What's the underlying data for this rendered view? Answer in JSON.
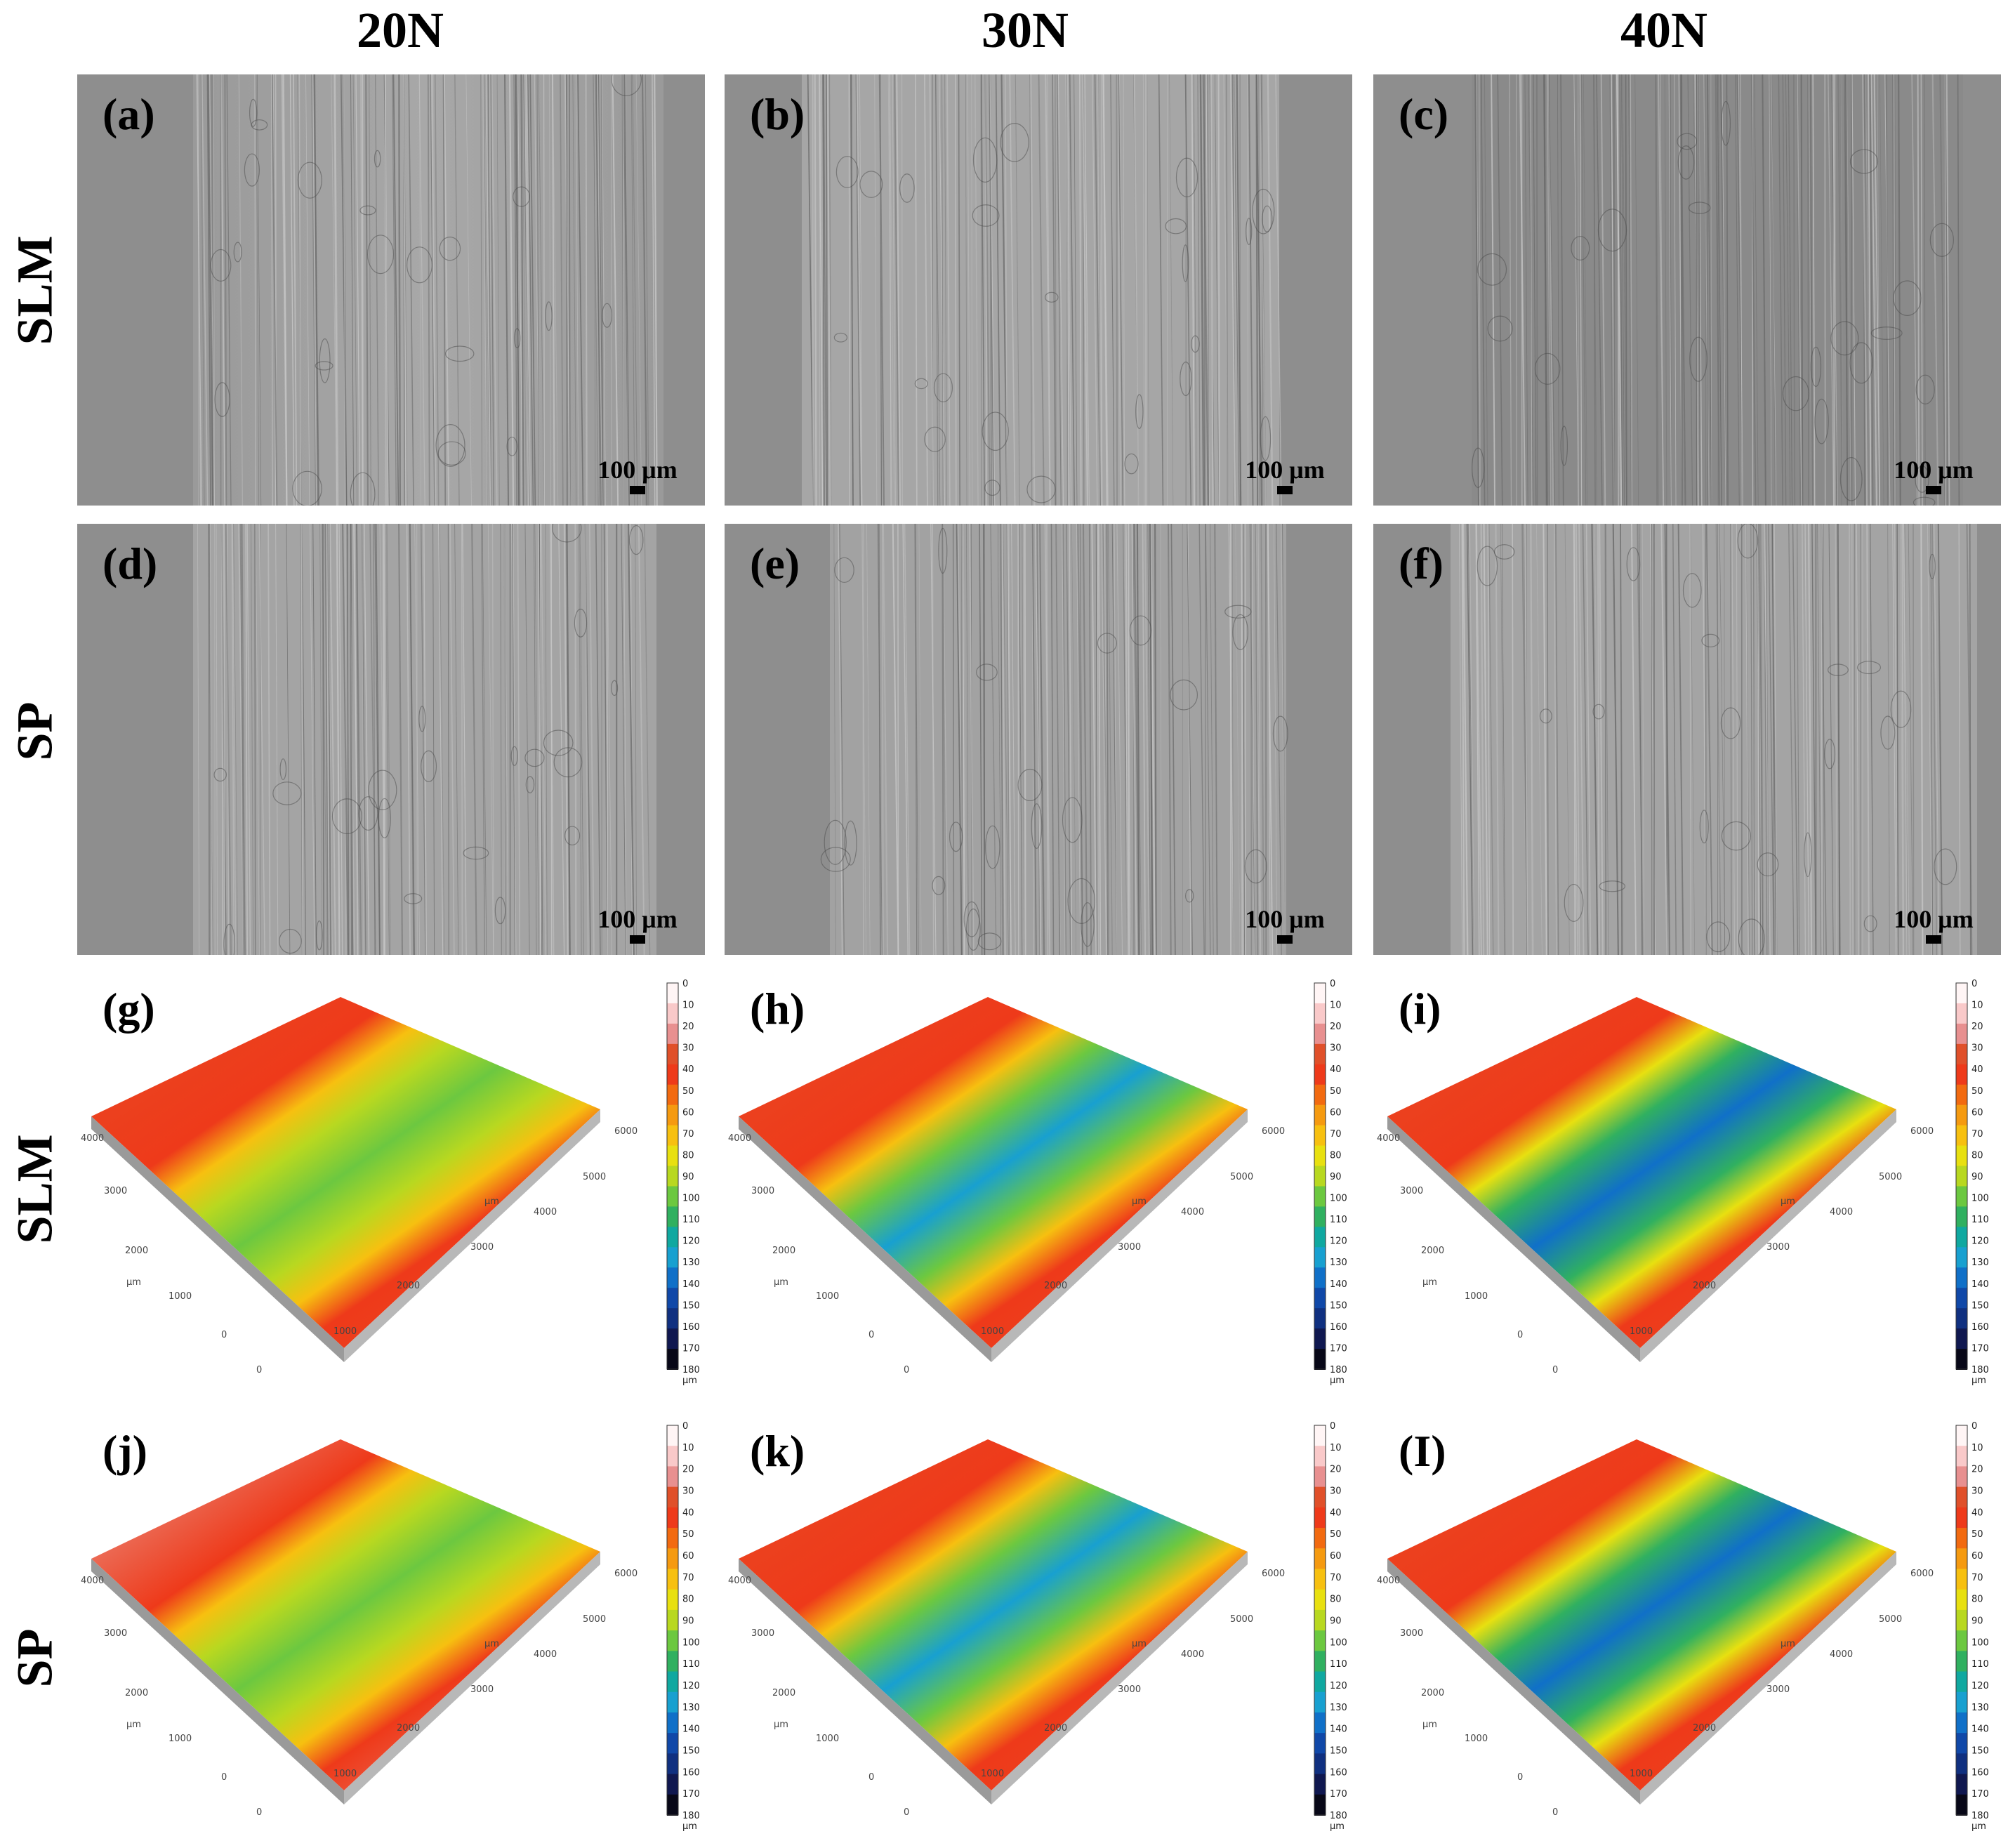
{
  "columns": [
    "20N",
    "30N",
    "40N"
  ],
  "rows": [
    "SLM",
    "SP",
    "SLM",
    "SP"
  ],
  "sem_panels": [
    {
      "label": "(a)",
      "scale": "100 μm"
    },
    {
      "label": "(b)",
      "scale": "100 μm"
    },
    {
      "label": "(c)",
      "scale": "100 μm"
    },
    {
      "label": "(d)",
      "scale": "100 μm"
    },
    {
      "label": "(e)",
      "scale": "100 μm"
    },
    {
      "label": "(f)",
      "scale": "100 μm"
    }
  ],
  "topo_panels": [
    {
      "label": "(g)",
      "depth": "shallow",
      "surface": "solid"
    },
    {
      "label": "(h)",
      "depth": "medium",
      "surface": "solid"
    },
    {
      "label": "(i)",
      "depth": "deep",
      "surface": "solid"
    },
    {
      "label": "(j)",
      "depth": "shallow",
      "surface": "frosted"
    },
    {
      "label": "(k)",
      "depth": "medium",
      "surface": "solid"
    },
    {
      "label": "(l)",
      "depth": "deep",
      "surface": "solid"
    }
  ],
  "topo_panel_label_l": "(I)",
  "colorbar": {
    "ticks": [
      "0",
      "10",
      "20",
      "30",
      "40",
      "50",
      "60",
      "70",
      "80",
      "90",
      "100",
      "110",
      "120",
      "130",
      "140",
      "150",
      "160",
      "170",
      "180"
    ],
    "unit": "μm",
    "colors": [
      "#fff5f5",
      "#f9c9c9",
      "#e89090",
      "#e0502a",
      "#ee3a1a",
      "#f26a10",
      "#f59a10",
      "#f7c010",
      "#e8e010",
      "#b8d820",
      "#6cc840",
      "#30b060",
      "#10a8a0",
      "#18a0d0",
      "#1070c8",
      "#1048a8",
      "#103080",
      "#101850",
      "#080818"
    ]
  },
  "axes": {
    "y_ticks": [
      "4000",
      "3000",
      "2000",
      "1000",
      "0"
    ],
    "x_ticks": [
      "6000",
      "5000",
      "4000",
      "3000",
      "2000",
      "1000",
      "0"
    ],
    "unit": "μm"
  }
}
